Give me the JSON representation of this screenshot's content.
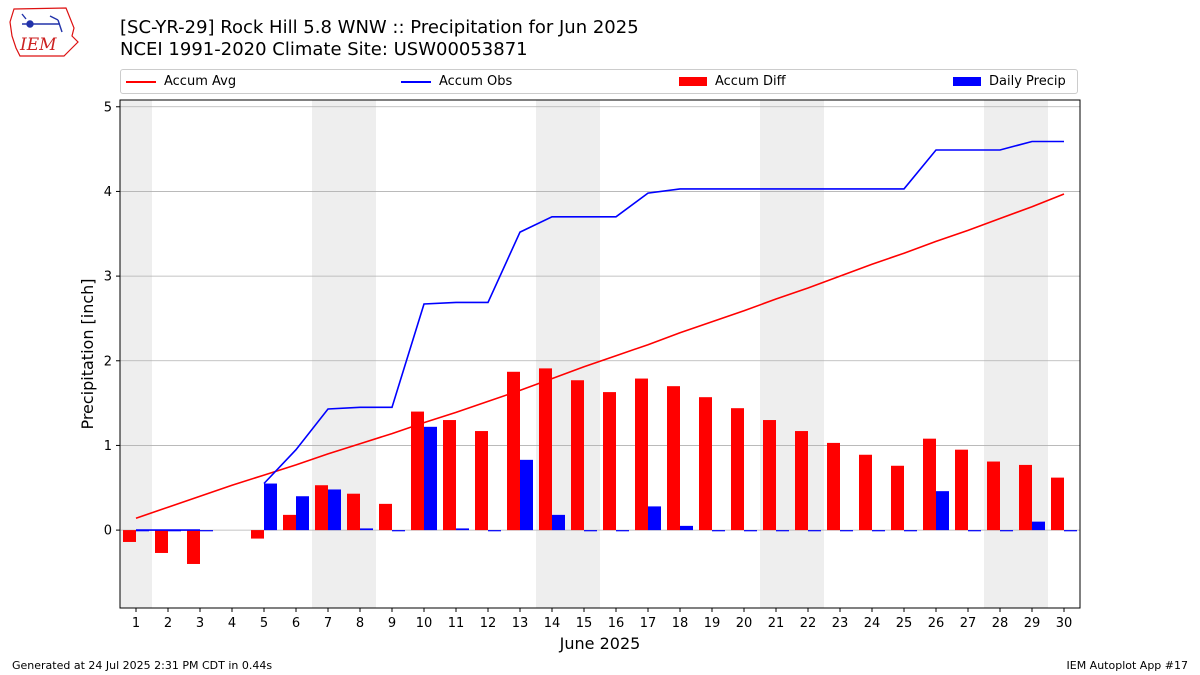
{
  "logo": {
    "text": "IEM"
  },
  "title": {
    "line1": "[SC-YR-29] Rock Hill 5.8 WNW :: Precipitation for Jun 2025",
    "line2": "NCEI 1991-2020 Climate Site: USW00053871"
  },
  "footer": {
    "left": "Generated at 24 Jul 2025 2:31 PM CDT in 0.44s",
    "right": "IEM Autoplot App #17"
  },
  "colors": {
    "avg": "#ff0000",
    "obs": "#0000ff",
    "diff": "#ff0000",
    "daily": "#0000ff",
    "weekend_shade": "#eeeeee",
    "grid": "#b0b0b0"
  },
  "chart_data": {
    "type": "bar",
    "xlabel": "June 2025",
    "ylabel": "Precipitation [inch]",
    "ylim": [
      -0.92,
      5.08
    ],
    "xlim": [
      0.5,
      30.5
    ],
    "yticks": [
      0,
      1,
      2,
      3,
      4,
      5
    ],
    "x": [
      1,
      2,
      3,
      4,
      5,
      6,
      7,
      8,
      9,
      10,
      11,
      12,
      13,
      14,
      15,
      16,
      17,
      18,
      19,
      20,
      21,
      22,
      23,
      24,
      25,
      26,
      27,
      28,
      29,
      30
    ],
    "grid": "horizontal",
    "legend_placement": "top",
    "weekend_bands": [
      [
        0.5,
        1.5
      ],
      [
        6.5,
        8.5
      ],
      [
        13.5,
        15.5
      ],
      [
        20.5,
        22.5
      ],
      [
        27.5,
        29.5
      ]
    ],
    "series": [
      {
        "name": "Accum Avg",
        "kind": "line",
        "values": [
          0.14,
          0.27,
          0.4,
          0.53,
          0.65,
          0.77,
          0.9,
          1.02,
          1.14,
          1.27,
          1.39,
          1.52,
          1.65,
          1.79,
          1.93,
          2.06,
          2.19,
          2.33,
          2.46,
          2.59,
          2.73,
          2.86,
          3.0,
          3.14,
          3.27,
          3.41,
          3.54,
          3.68,
          3.82,
          3.97
        ]
      },
      {
        "name": "Accum Obs",
        "kind": "line",
        "values": [
          0.0,
          0.0,
          0.0,
          null,
          0.55,
          0.95,
          1.43,
          1.45,
          1.45,
          2.67,
          2.69,
          2.69,
          3.52,
          3.7,
          3.7,
          3.7,
          3.98,
          4.03,
          4.03,
          4.03,
          4.03,
          4.03,
          4.03,
          4.03,
          4.03,
          4.49,
          4.49,
          4.49,
          4.59,
          4.59
        ]
      },
      {
        "name": "Accum Diff",
        "kind": "bar",
        "values": [
          -0.14,
          -0.27,
          -0.4,
          null,
          -0.1,
          0.18,
          0.53,
          0.43,
          0.31,
          1.4,
          1.3,
          1.17,
          1.87,
          1.91,
          1.77,
          1.63,
          1.79,
          1.7,
          1.57,
          1.44,
          1.3,
          1.17,
          1.03,
          0.89,
          0.76,
          1.08,
          0.95,
          0.81,
          0.77,
          0.62
        ]
      },
      {
        "name": "Daily Precip",
        "kind": "bar",
        "values": [
          0.0,
          0.0,
          0.0,
          null,
          0.55,
          0.4,
          0.48,
          0.02,
          0.0,
          1.22,
          0.02,
          0.0,
          0.83,
          0.18,
          0.0,
          0.0,
          0.28,
          0.05,
          0.0,
          0.0,
          0.0,
          0.0,
          0.0,
          0.0,
          0.0,
          0.46,
          0.0,
          0.0,
          0.1,
          0.0
        ]
      }
    ]
  }
}
